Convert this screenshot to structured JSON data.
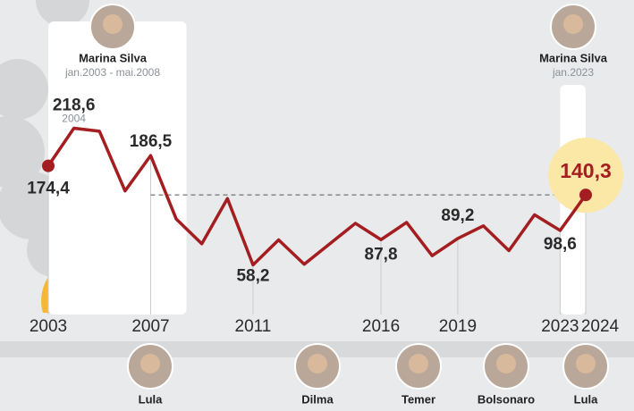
{
  "chart_data": {
    "type": "line",
    "x": [
      2003,
      2004,
      2005,
      2006,
      2007,
      2008,
      2009,
      2010,
      2011,
      2012,
      2013,
      2014,
      2015,
      2016,
      2017,
      2018,
      2019,
      2020,
      2021,
      2022,
      2023,
      2024
    ],
    "values": [
      174.4,
      218.6,
      215,
      145,
      186.5,
      112,
      83,
      136,
      58.2,
      87.5,
      59,
      83,
      107,
      87.8,
      108,
      69,
      89.2,
      104,
      75,
      117,
      98.6,
      140.3
    ],
    "value_labels": [
      "174,4",
      "218,6",
      null,
      null,
      "186,5",
      null,
      null,
      null,
      "58,2",
      null,
      null,
      null,
      null,
      "87,8",
      null,
      null,
      "89,2",
      null,
      null,
      null,
      "98,6",
      "140,3"
    ],
    "peak_note": "2004",
    "color": "#a31d21",
    "xlim": [
      2003,
      2024
    ],
    "xticks": [
      2003,
      2007,
      2011,
      2016,
      2019,
      2023,
      2024
    ],
    "ylim": [
      0,
      369
    ],
    "reference_line": {
      "y": 140.3,
      "x": [
        2007,
        2024
      ]
    },
    "highlights": [
      {
        "name": "Marina Silva",
        "period": "jan.2003 - mai.2008",
        "x": [
          2003,
          2008.4
        ]
      },
      {
        "name": "Marina Silva",
        "period": "jan.2023",
        "x": [
          2023,
          2024
        ]
      }
    ],
    "presidents": [
      "Lula",
      "Dilma",
      "Temer",
      "Bolsonaro",
      "Lula"
    ]
  }
}
